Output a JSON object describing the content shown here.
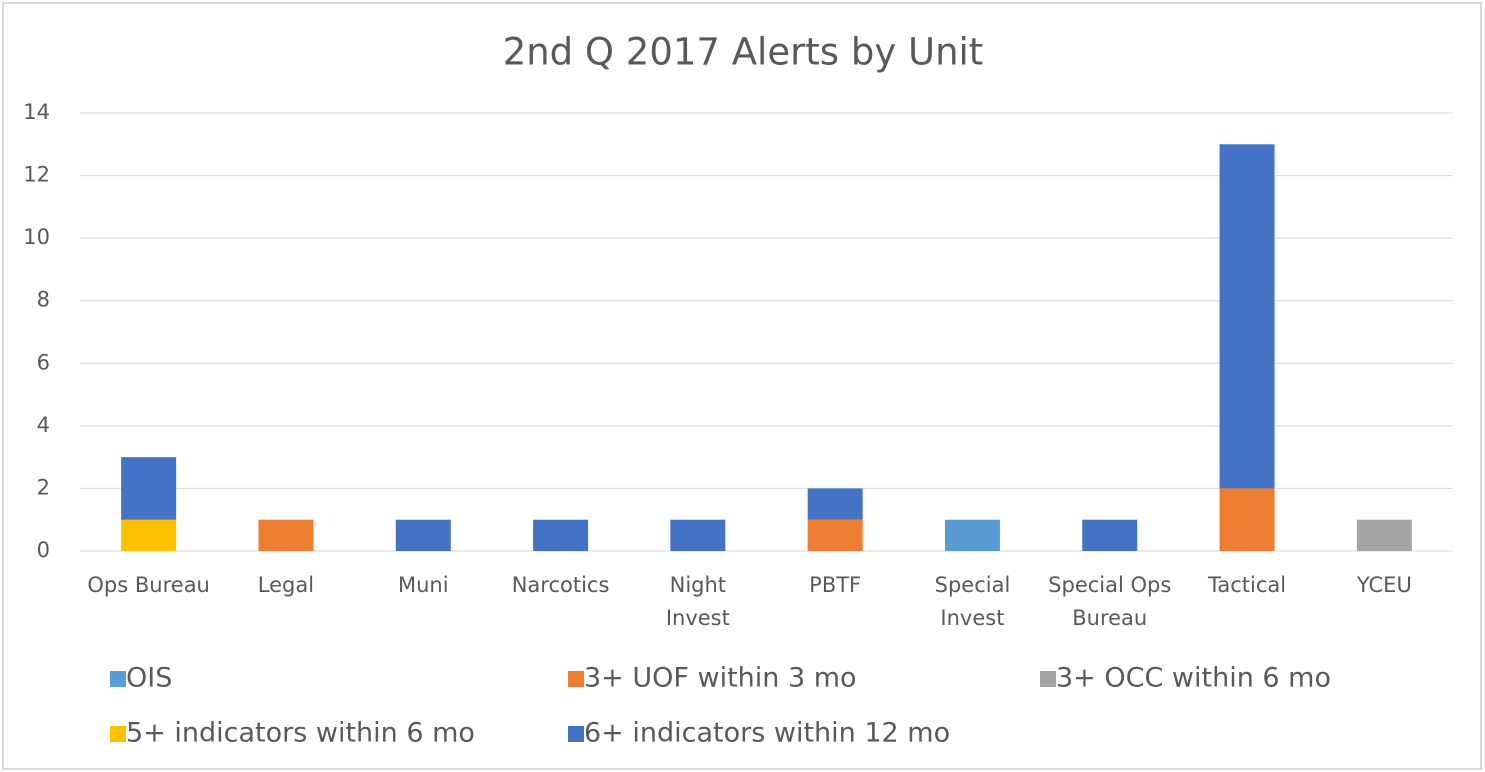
{
  "chart_data": {
    "type": "stacked_bar",
    "title": "2nd Q 2017 Alerts by Unit",
    "categories": [
      "Ops Bureau",
      "Legal",
      "Muni",
      "Narcotics",
      "Night Invest",
      "PBTF",
      "Special Invest",
      "Special Ops Bureau",
      "Tactical",
      "YCEU"
    ],
    "series": [
      {
        "name": "OIS",
        "color": "#5b9bd5",
        "values": [
          0,
          0,
          0,
          0,
          0,
          0,
          1,
          0,
          0,
          0
        ]
      },
      {
        "name": "3+ UOF within 3 mo",
        "color": "#ed7d31",
        "values": [
          0,
          1,
          0,
          0,
          0,
          1,
          0,
          0,
          2,
          0
        ]
      },
      {
        "name": "3+ OCC within 6 mo",
        "color": "#a5a5a5",
        "values": [
          0,
          0,
          0,
          0,
          0,
          0,
          0,
          0,
          0,
          1
        ]
      },
      {
        "name": "5+ indicators within 6 mo",
        "color": "#ffc000",
        "values": [
          1,
          0,
          0,
          0,
          0,
          0,
          0,
          0,
          0,
          0
        ]
      },
      {
        "name": "6+ indicators within 12 mo",
        "color": "#4472c4",
        "values": [
          2,
          0,
          1,
          1,
          1,
          1,
          0,
          1,
          11,
          0
        ]
      }
    ],
    "ylim": [
      0,
      14
    ],
    "yticks": [
      0,
      2,
      4,
      6,
      8,
      10,
      12,
      14
    ],
    "grid": true,
    "legend": "bottom"
  }
}
